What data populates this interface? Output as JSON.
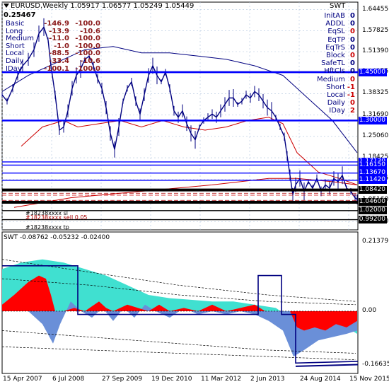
{
  "header": {
    "symbol_line": "EURUSD,Weekly  1.05917 1.06577 1.05249 1.05449",
    "value": "0.25467",
    "indicator_tag": "SWT"
  },
  "stats": [
    {
      "label": "Basic",
      "v1": "-146.9",
      "v2": "-100.0"
    },
    {
      "label": "Long",
      "v1": "-13.9",
      "v2": "-10.6"
    },
    {
      "label": "Medium",
      "v1": "-11.0",
      "v2": "-100.0"
    },
    {
      "label": "Short",
      "v1": "-1.0",
      "v2": "-100.0"
    },
    {
      "label": "Local",
      "v1": "-88.5",
      "v2": "-100.0"
    },
    {
      "label": "Daily",
      "v1": "-33.4",
      "v2": "-10.6"
    },
    {
      "label": "IDay",
      "v1": "-100.1",
      "v2": "-100.0"
    }
  ],
  "status_table": [
    {
      "key": "InitAB",
      "val": "0",
      "color": "#000080"
    },
    {
      "key": "ADDL",
      "val": "0",
      "color": "#000080"
    },
    {
      "key": "EqSL",
      "val": "0",
      "color": "#cc0000"
    },
    {
      "key": "EqTP",
      "val": "0",
      "color": "#000080"
    },
    {
      "key": "EqTrS",
      "val": "0",
      "color": "#000080"
    },
    {
      "key": "Block",
      "val": "0",
      "color": "#cc0000"
    },
    {
      "key": "SafeTL",
      "val": "0",
      "color": "#000080"
    },
    {
      "key": "HftCls",
      "val": "0",
      "color": "#000080"
    },
    {
      "key": "Medium",
      "val": "0",
      "color": "#cc0000"
    },
    {
      "key": "Short",
      "val": "-1",
      "color": "#cc0000"
    },
    {
      "key": "Local",
      "val": "-1",
      "color": "#cc0000"
    },
    {
      "key": "Daily",
      "val": "0",
      "color": "#cc0000"
    },
    {
      "key": "IDay",
      "val": "2",
      "color": "#cc0000"
    }
  ],
  "price_axis": [
    "1.64455",
    "1.57825",
    "1.51390",
    "1.44955",
    "1.38325",
    "1.31690",
    "1.25060",
    "1.18425",
    "1.11795",
    "1.05160",
    "0.98530"
  ],
  "levels": [
    {
      "price": "1.45000",
      "color": "#0000ff"
    },
    {
      "price": "1.30000",
      "color": "#0000ff"
    },
    {
      "price": "1.17130",
      "color": "#0000ff"
    },
    {
      "price": "1.16150",
      "color": "#0000ff"
    },
    {
      "price": "1.13670",
      "color": "#0000ff"
    },
    {
      "price": "1.11420",
      "color": "#0000ff"
    },
    {
      "price": "1.08420",
      "color": "#000000"
    },
    {
      "price": "1.04600",
      "color": "#000000"
    },
    {
      "price": "1.02000",
      "color": "#000000"
    },
    {
      "price": "0.99200",
      "color": "#000000"
    }
  ],
  "orders": [
    {
      "text": "#18238xxxx sl",
      "color": "#000000"
    },
    {
      "text": "#18238xxxx sell 0.05",
      "color": "#aa0000"
    },
    {
      "text": "#18238xxxx tp",
      "color": "#000000"
    }
  ],
  "sub_window": {
    "title": "SWT -0.08762 -0.05232 -0.02400",
    "axis": [
      "0.21379",
      "0.00",
      "-0.16635"
    ]
  },
  "time_axis": [
    "15 Apr 2007",
    "6 Jul 2008",
    "27 Sep 2009",
    "19 Dec 2010",
    "11 Mar 2012",
    "2 Jun 2013",
    "24 Aug 2014",
    "15 Nov 2015"
  ],
  "colors": {
    "candles": "#000080",
    "level_blue": "#0000ff",
    "ma_red": "#cc0000",
    "sub_cyan": "#40e0d0",
    "sub_red": "#ff0000",
    "sub_blue": "#6a8fd8"
  }
}
